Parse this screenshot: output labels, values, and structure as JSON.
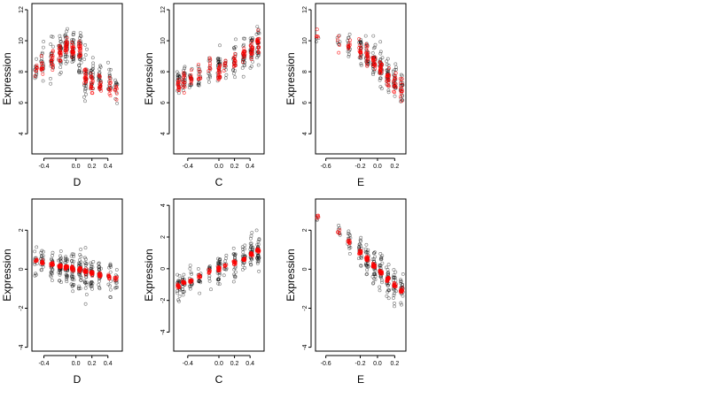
{
  "chart_data": [
    {
      "type": "scatter",
      "panel": "top-left",
      "xlabel": "D",
      "ylabel": "Expression",
      "xlim": [
        -0.55,
        0.58
      ],
      "ylim": [
        2.7,
        12.4
      ],
      "xticks": [
        -0.4,
        0.0,
        0.2,
        0.4
      ],
      "xtick_labels": [
        "-0.4",
        "0.0",
        "0.2",
        "0.4"
      ],
      "yticks": [
        4,
        6,
        8,
        10,
        12
      ],
      "ytick_labels": [
        "4",
        "6",
        "8",
        "10",
        "12"
      ],
      "groups": [
        {
          "x": -0.5,
          "n": 12,
          "center": 8.0,
          "spread": 1.2,
          "fit": 8.0
        },
        {
          "x": -0.42,
          "n": 18,
          "center": 8.6,
          "spread": 1.3,
          "fit": 8.5
        },
        {
          "x": -0.3,
          "n": 22,
          "center": 8.8,
          "spread": 1.5,
          "fit": 8.9
        },
        {
          "x": -0.2,
          "n": 28,
          "center": 9.2,
          "spread": 1.3,
          "fit": 9.1
        },
        {
          "x": -0.12,
          "n": 30,
          "center": 9.6,
          "spread": 1.3,
          "fit": 9.5
        },
        {
          "x": -0.04,
          "n": 30,
          "center": 9.4,
          "spread": 1.4,
          "fit": 9.3
        },
        {
          "x": 0.05,
          "n": 30,
          "center": 9.2,
          "spread": 1.6,
          "fit": 9.3
        },
        {
          "x": 0.12,
          "n": 28,
          "center": 7.8,
          "spread": 1.8,
          "fit": 7.7
        },
        {
          "x": 0.2,
          "n": 26,
          "center": 7.6,
          "spread": 1.5,
          "fit": 7.4
        },
        {
          "x": 0.3,
          "n": 22,
          "center": 7.4,
          "spread": 1.4,
          "fit": 7.2
        },
        {
          "x": 0.42,
          "n": 16,
          "center": 7.4,
          "spread": 1.3,
          "fit": 7.1
        },
        {
          "x": 0.5,
          "n": 12,
          "center": 7.0,
          "spread": 1.2,
          "fit": 7.0
        }
      ]
    },
    {
      "type": "scatter",
      "panel": "top-middle",
      "xlabel": "C",
      "ylabel": "Expression",
      "xlim": [
        -0.58,
        0.58
      ],
      "ylim": [
        2.7,
        12.4
      ],
      "xticks": [
        -0.4,
        0.0,
        0.2,
        0.4
      ],
      "xtick_labels": [
        "-0.4",
        "0.0",
        "0.2",
        "0.4"
      ],
      "yticks": [
        4,
        6,
        8,
        10,
        12
      ],
      "ytick_labels": [
        "4",
        "6",
        "8",
        "10",
        "12"
      ],
      "groups": [
        {
          "x": -0.52,
          "n": 22,
          "center": 7.5,
          "spread": 1.3,
          "fit": 7.1
        },
        {
          "x": -0.45,
          "n": 20,
          "center": 7.3,
          "spread": 1.2,
          "fit": 7.3
        },
        {
          "x": -0.36,
          "n": 16,
          "center": 7.5,
          "spread": 1.2,
          "fit": 7.5
        },
        {
          "x": -0.25,
          "n": 14,
          "center": 7.7,
          "spread": 1.3,
          "fit": 7.9
        },
        {
          "x": -0.12,
          "n": 12,
          "center": 8.0,
          "spread": 1.3,
          "fit": 8.4
        },
        {
          "x": 0.0,
          "n": 30,
          "center": 8.3,
          "spread": 1.5,
          "fit": 8.0
        },
        {
          "x": 0.08,
          "n": 10,
          "center": 8.5,
          "spread": 1.2,
          "fit": 8.5
        },
        {
          "x": 0.2,
          "n": 22,
          "center": 8.7,
          "spread": 1.4,
          "fit": 8.7
        },
        {
          "x": 0.32,
          "n": 24,
          "center": 9.0,
          "spread": 1.3,
          "fit": 9.1
        },
        {
          "x": 0.42,
          "n": 28,
          "center": 9.5,
          "spread": 1.4,
          "fit": 9.5
        },
        {
          "x": 0.5,
          "n": 30,
          "center": 9.8,
          "spread": 1.3,
          "fit": 9.8
        }
      ]
    },
    {
      "type": "scatter",
      "panel": "top-right",
      "xlabel": "E",
      "ylabel": "Expression",
      "xlim": [
        -0.72,
        0.33
      ],
      "ylim": [
        2.7,
        12.4
      ],
      "xticks": [
        -0.6,
        -0.2,
        0.0,
        0.2
      ],
      "xtick_labels": [
        "-0.6",
        "-0.2",
        "0.0",
        "0.2"
      ],
      "yticks": [
        4,
        6,
        8,
        10,
        12
      ],
      "ytick_labels": [
        "4",
        "6",
        "8",
        "10",
        "12"
      ],
      "groups": [
        {
          "x": -0.7,
          "n": 3,
          "center": 10.2,
          "spread": 0.6,
          "fit": 10.2
        },
        {
          "x": -0.45,
          "n": 6,
          "center": 10.0,
          "spread": 0.7,
          "fit": 10.0
        },
        {
          "x": -0.33,
          "n": 14,
          "center": 9.8,
          "spread": 1.0,
          "fit": 9.7
        },
        {
          "x": -0.2,
          "n": 22,
          "center": 9.4,
          "spread": 1.2,
          "fit": 9.3
        },
        {
          "x": -0.12,
          "n": 26,
          "center": 9.0,
          "spread": 1.3,
          "fit": 8.9
        },
        {
          "x": -0.04,
          "n": 30,
          "center": 8.6,
          "spread": 1.4,
          "fit": 8.5
        },
        {
          "x": 0.04,
          "n": 30,
          "center": 8.2,
          "spread": 1.5,
          "fit": 8.1
        },
        {
          "x": 0.12,
          "n": 28,
          "center": 7.8,
          "spread": 1.4,
          "fit": 7.7
        },
        {
          "x": 0.2,
          "n": 24,
          "center": 7.5,
          "spread": 1.4,
          "fit": 7.3
        },
        {
          "x": 0.28,
          "n": 20,
          "center": 7.0,
          "spread": 1.3,
          "fit": 6.9
        }
      ]
    },
    {
      "type": "scatter",
      "panel": "bottom-left",
      "xlabel": "D",
      "ylabel": "Expression",
      "xlim": [
        -0.55,
        0.58
      ],
      "ylim": [
        -4.2,
        3.6
      ],
      "xticks": [
        -0.4,
        0.0,
        0.2,
        0.4
      ],
      "xtick_labels": [
        "-0.4",
        "0.0",
        "0.2",
        "0.4"
      ],
      "yticks": [
        -4,
        -2,
        0,
        2
      ],
      "ytick_labels": [
        "-4",
        "-2",
        "0",
        "2"
      ],
      "groups": [
        {
          "x": -0.5,
          "n": 12,
          "center": 0.4,
          "spread": 0.9,
          "fit": 0.45
        },
        {
          "x": -0.42,
          "n": 18,
          "center": 0.3,
          "spread": 1.0,
          "fit": 0.37
        },
        {
          "x": -0.3,
          "n": 22,
          "center": 0.2,
          "spread": 1.1,
          "fit": 0.26
        },
        {
          "x": -0.2,
          "n": 28,
          "center": 0.15,
          "spread": 1.1,
          "fit": 0.16
        },
        {
          "x": -0.12,
          "n": 30,
          "center": 0.1,
          "spread": 1.2,
          "fit": 0.1
        },
        {
          "x": -0.04,
          "n": 30,
          "center": 0.0,
          "spread": 1.2,
          "fit": 0.03
        },
        {
          "x": 0.05,
          "n": 30,
          "center": -0.1,
          "spread": 1.4,
          "fit": -0.05
        },
        {
          "x": 0.12,
          "n": 28,
          "center": -0.2,
          "spread": 1.5,
          "fit": -0.12
        },
        {
          "x": 0.2,
          "n": 26,
          "center": -0.2,
          "spread": 1.3,
          "fit": -0.2
        },
        {
          "x": 0.3,
          "n": 22,
          "center": -0.3,
          "spread": 1.2,
          "fit": -0.3
        },
        {
          "x": 0.42,
          "n": 16,
          "center": -0.4,
          "spread": 1.2,
          "fit": -0.4
        },
        {
          "x": 0.5,
          "n": 12,
          "center": -0.5,
          "spread": 1.0,
          "fit": -0.48
        }
      ]
    },
    {
      "type": "scatter",
      "panel": "bottom-middle",
      "xlabel": "C",
      "ylabel": "Expression",
      "xlim": [
        -0.58,
        0.58
      ],
      "ylim": [
        -5.2,
        4.4
      ],
      "xticks": [
        -0.4,
        0.0,
        0.2,
        0.4
      ],
      "xtick_labels": [
        "-0.4",
        "0.0",
        "0.2",
        "0.4"
      ],
      "yticks": [
        -4,
        -2,
        0,
        2,
        4
      ],
      "ytick_labels": [
        "-4",
        "-2",
        "0",
        "2",
        "4"
      ],
      "groups": [
        {
          "x": -0.52,
          "n": 22,
          "center": -1.0,
          "spread": 1.2,
          "fit": -1.1
        },
        {
          "x": -0.45,
          "n": 20,
          "center": -0.9,
          "spread": 1.1,
          "fit": -0.9
        },
        {
          "x": -0.36,
          "n": 16,
          "center": -0.7,
          "spread": 1.1,
          "fit": -0.75
        },
        {
          "x": -0.25,
          "n": 14,
          "center": -0.5,
          "spread": 1.1,
          "fit": -0.5
        },
        {
          "x": -0.12,
          "n": 12,
          "center": -0.2,
          "spread": 1.1,
          "fit": -0.2
        },
        {
          "x": 0.0,
          "n": 30,
          "center": 0.0,
          "spread": 1.3,
          "fit": 0.0
        },
        {
          "x": 0.08,
          "n": 10,
          "center": 0.2,
          "spread": 1.0,
          "fit": 0.2
        },
        {
          "x": 0.2,
          "n": 22,
          "center": 0.4,
          "spread": 1.2,
          "fit": 0.4
        },
        {
          "x": 0.32,
          "n": 24,
          "center": 0.6,
          "spread": 1.2,
          "fit": 0.6
        },
        {
          "x": 0.42,
          "n": 28,
          "center": 0.9,
          "spread": 1.3,
          "fit": 0.9
        },
        {
          "x": 0.5,
          "n": 30,
          "center": 1.1,
          "spread": 1.4,
          "fit": 1.15
        }
      ]
    },
    {
      "type": "scatter",
      "panel": "bottom-right",
      "xlabel": "E",
      "ylabel": "Expression",
      "xlim": [
        -0.72,
        0.33
      ],
      "ylim": [
        -4.2,
        3.6
      ],
      "xticks": [
        -0.6,
        -0.2,
        0.0,
        0.2
      ],
      "xtick_labels": [
        "-0.6",
        "-0.2",
        "0.0",
        "0.2"
      ],
      "yticks": [
        -4,
        -2,
        0,
        2
      ],
      "ytick_labels": [
        "-4",
        "-2",
        "0",
        "2"
      ],
      "groups": [
        {
          "x": -0.7,
          "n": 3,
          "center": 2.7,
          "spread": 0.4,
          "fit": 2.7
        },
        {
          "x": -0.45,
          "n": 6,
          "center": 1.9,
          "spread": 0.6,
          "fit": 1.9
        },
        {
          "x": -0.33,
          "n": 14,
          "center": 1.4,
          "spread": 0.9,
          "fit": 1.4
        },
        {
          "x": -0.2,
          "n": 22,
          "center": 0.9,
          "spread": 1.0,
          "fit": 0.9
        },
        {
          "x": -0.12,
          "n": 26,
          "center": 0.5,
          "spread": 1.1,
          "fit": 0.55
        },
        {
          "x": -0.04,
          "n": 30,
          "center": 0.2,
          "spread": 1.2,
          "fit": 0.2
        },
        {
          "x": 0.04,
          "n": 30,
          "center": -0.2,
          "spread": 1.3,
          "fit": -0.15
        },
        {
          "x": 0.12,
          "n": 28,
          "center": -0.5,
          "spread": 1.3,
          "fit": -0.5
        },
        {
          "x": 0.2,
          "n": 24,
          "center": -0.8,
          "spread": 1.2,
          "fit": -0.8
        },
        {
          "x": 0.28,
          "n": 20,
          "center": -1.1,
          "spread": 1.2,
          "fit": -1.1
        }
      ]
    }
  ],
  "colors": {
    "observed": "#000000",
    "fitted": "#ff0000"
  }
}
